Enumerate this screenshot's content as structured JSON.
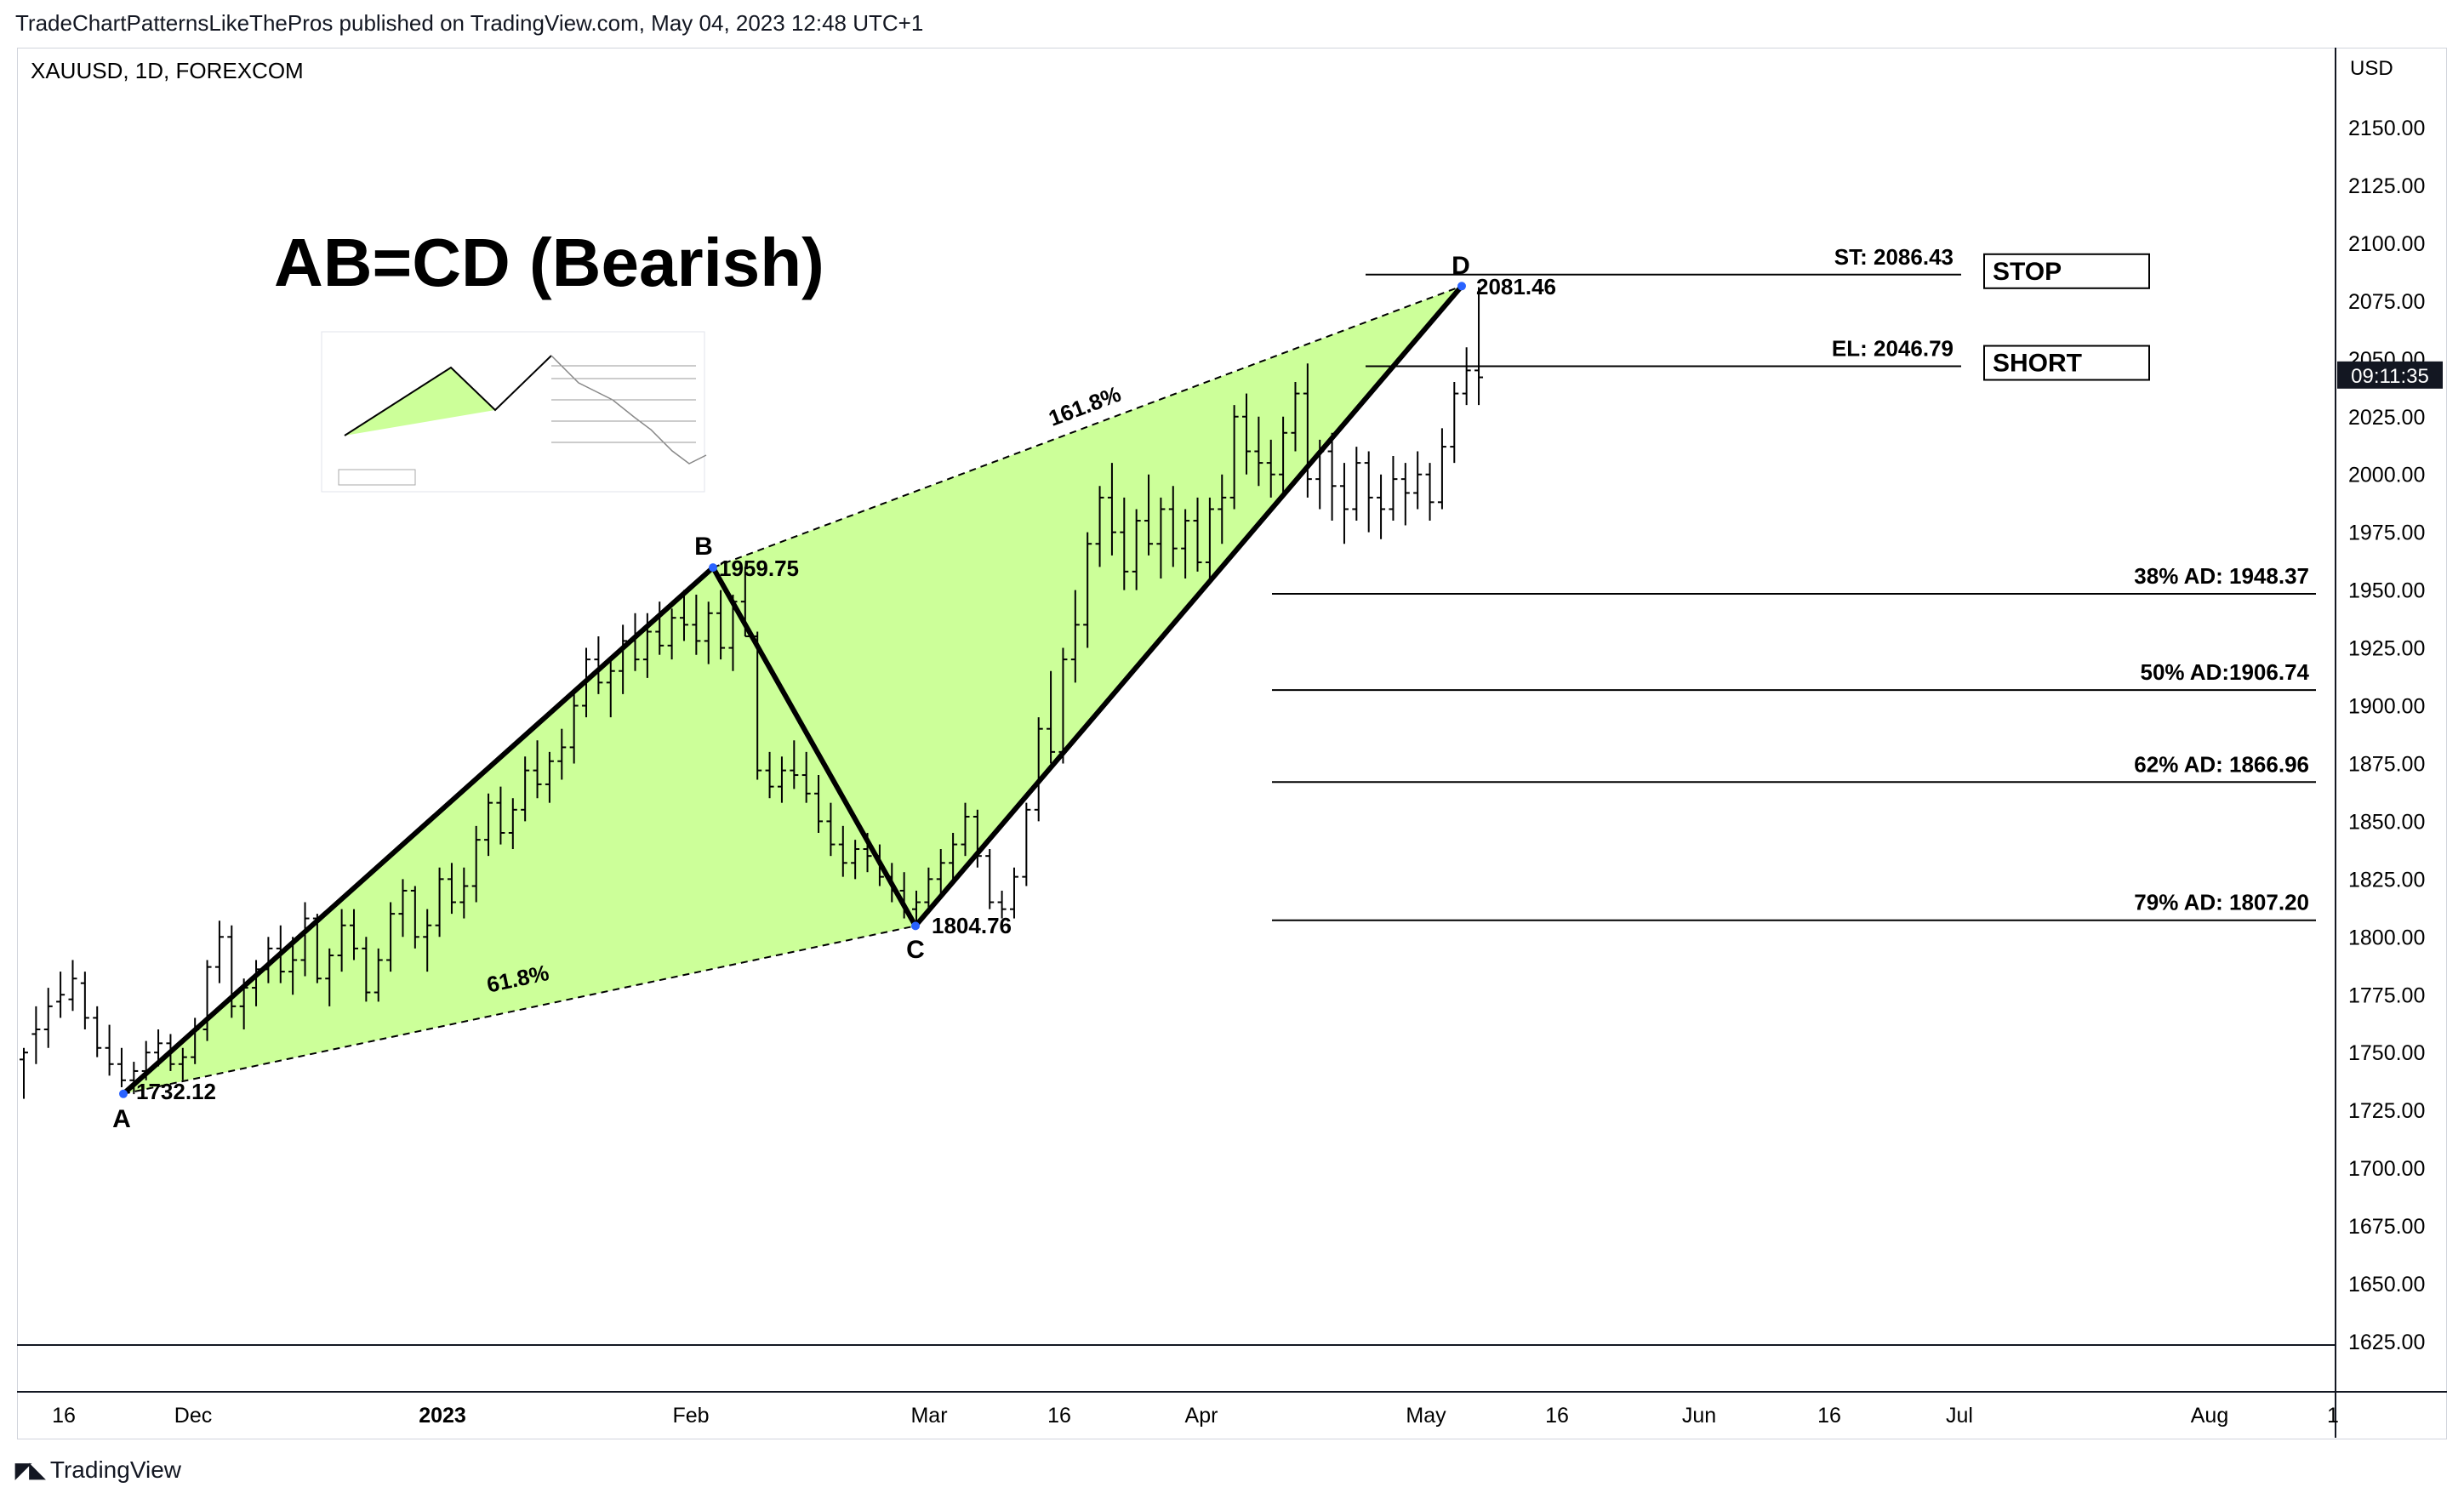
{
  "header": {
    "published": "TradeChartPatternsLikeThePros published on TradingView.com, May 04, 2023 12:48 UTC+1"
  },
  "brand": {
    "name": "TradingView",
    "icon": "tradingview-logo-icon"
  },
  "colors": {
    "fill": "#ccff99",
    "line": "#000000",
    "price_badge_bg": "#131722",
    "point": "#2962ff"
  },
  "chart_data": {
    "type": "bar",
    "symbol_label": "XAUUSD, 1D, FOREXCOM",
    "title": "AB=CD (Bearish)",
    "currency": "USD",
    "ylim": [
      1605,
      2170
    ],
    "y_ticks": [
      "2150.00",
      "2125.00",
      "2100.00",
      "2075.00",
      "2050.00",
      "2025.00",
      "2000.00",
      "1975.00",
      "1950.00",
      "1925.00",
      "1900.00",
      "1875.00",
      "1850.00",
      "1825.00",
      "1800.00",
      "1775.00",
      "1750.00",
      "1725.00",
      "1700.00",
      "1675.00",
      "1650.00",
      "1625.00"
    ],
    "x_ticks": [
      "16",
      "Dec",
      "2023",
      "Feb",
      "Mar",
      "16",
      "Apr",
      "May",
      "16",
      "Jun",
      "16",
      "Jul",
      "Aug",
      "1"
    ],
    "current_price_label": "09:11:35",
    "pattern_points": [
      {
        "name": "A",
        "price_label": "1732.12",
        "value": 1732.12
      },
      {
        "name": "B",
        "price_label": "1959.75",
        "value": 1959.75
      },
      {
        "name": "C",
        "price_label": "1804.76",
        "value": 1804.76
      },
      {
        "name": "D",
        "price_label": "2081.46",
        "value": 2081.46
      }
    ],
    "ratios": [
      {
        "label": "61.8%",
        "between": "A-C"
      },
      {
        "label": "161.8%",
        "between": "B-D"
      }
    ],
    "levels": [
      {
        "label": "ST: 2086.43",
        "value": 2086.43,
        "box": "STOP"
      },
      {
        "label": "EL: 2046.79",
        "value": 2046.79,
        "box": "SHORT"
      },
      {
        "label": "38% AD: 1948.37",
        "value": 1948.37
      },
      {
        "label": "50% AD:1906.74",
        "value": 1906.74
      },
      {
        "label": "62% AD: 1866.96",
        "value": 1866.96
      },
      {
        "label": "79% AD: 1807.20",
        "value": 1807.2
      }
    ],
    "ohlc": [
      [
        1747,
        1752,
        1730,
        1750
      ],
      [
        1758,
        1770,
        1745,
        1760
      ],
      [
        1760,
        1778,
        1752,
        1770
      ],
      [
        1772,
        1785,
        1765,
        1775
      ],
      [
        1773,
        1790,
        1768,
        1782
      ],
      [
        1780,
        1785,
        1760,
        1765
      ],
      [
        1765,
        1770,
        1748,
        1752
      ],
      [
        1752,
        1762,
        1740,
        1745
      ],
      [
        1745,
        1752,
        1735,
        1738
      ],
      [
        1738,
        1746,
        1732,
        1742
      ],
      [
        1742,
        1755,
        1738,
        1750
      ],
      [
        1750,
        1760,
        1744,
        1754
      ],
      [
        1754,
        1758,
        1742,
        1745
      ],
      [
        1745,
        1752,
        1738,
        1748
      ],
      [
        1748,
        1765,
        1745,
        1760
      ],
      [
        1760,
        1790,
        1755,
        1787
      ],
      [
        1787,
        1807,
        1780,
        1800
      ],
      [
        1800,
        1805,
        1765,
        1770
      ],
      [
        1770,
        1782,
        1760,
        1778
      ],
      [
        1778,
        1790,
        1770,
        1786
      ],
      [
        1786,
        1800,
        1780,
        1795
      ],
      [
        1795,
        1805,
        1780,
        1785
      ],
      [
        1785,
        1800,
        1775,
        1790
      ],
      [
        1790,
        1815,
        1783,
        1808
      ],
      [
        1808,
        1810,
        1780,
        1782
      ],
      [
        1782,
        1795,
        1770,
        1792
      ],
      [
        1792,
        1812,
        1785,
        1805
      ],
      [
        1805,
        1812,
        1790,
        1795
      ],
      [
        1795,
        1800,
        1772,
        1776
      ],
      [
        1776,
        1795,
        1772,
        1790
      ],
      [
        1790,
        1815,
        1785,
        1810
      ],
      [
        1810,
        1825,
        1800,
        1820
      ],
      [
        1820,
        1822,
        1795,
        1800
      ],
      [
        1800,
        1812,
        1785,
        1805
      ],
      [
        1805,
        1830,
        1800,
        1825
      ],
      [
        1825,
        1832,
        1810,
        1815
      ],
      [
        1815,
        1830,
        1808,
        1822
      ],
      [
        1822,
        1848,
        1815,
        1842
      ],
      [
        1842,
        1862,
        1835,
        1858
      ],
      [
        1858,
        1865,
        1840,
        1845
      ],
      [
        1845,
        1860,
        1838,
        1855
      ],
      [
        1855,
        1878,
        1850,
        1872
      ],
      [
        1872,
        1885,
        1860,
        1866
      ],
      [
        1866,
        1880,
        1858,
        1876
      ],
      [
        1876,
        1890,
        1868,
        1882
      ],
      [
        1882,
        1905,
        1875,
        1900
      ],
      [
        1900,
        1925,
        1895,
        1920
      ],
      [
        1920,
        1930,
        1905,
        1910
      ],
      [
        1910,
        1920,
        1895,
        1915
      ],
      [
        1915,
        1935,
        1905,
        1928
      ],
      [
        1928,
        1940,
        1915,
        1920
      ],
      [
        1920,
        1940,
        1912,
        1932
      ],
      [
        1932,
        1945,
        1922,
        1926
      ],
      [
        1926,
        1942,
        1920,
        1938
      ],
      [
        1938,
        1950,
        1928,
        1935
      ],
      [
        1935,
        1948,
        1922,
        1928
      ],
      [
        1928,
        1945,
        1918,
        1940
      ],
      [
        1940,
        1950,
        1920,
        1925
      ],
      [
        1925,
        1948,
        1915,
        1945
      ],
      [
        1945,
        1960,
        1930,
        1930
      ],
      [
        1930,
        1932,
        1868,
        1872
      ],
      [
        1872,
        1880,
        1860,
        1865
      ],
      [
        1865,
        1878,
        1858,
        1872
      ],
      [
        1872,
        1885,
        1864,
        1870
      ],
      [
        1870,
        1880,
        1858,
        1862
      ],
      [
        1862,
        1870,
        1845,
        1850
      ],
      [
        1850,
        1858,
        1835,
        1840
      ],
      [
        1840,
        1848,
        1826,
        1832
      ],
      [
        1832,
        1842,
        1825,
        1838
      ],
      [
        1838,
        1845,
        1828,
        1835
      ],
      [
        1835,
        1840,
        1822,
        1826
      ],
      [
        1826,
        1832,
        1815,
        1820
      ],
      [
        1820,
        1828,
        1808,
        1812
      ],
      [
        1812,
        1820,
        1805,
        1815
      ],
      [
        1815,
        1830,
        1810,
        1825
      ],
      [
        1825,
        1838,
        1818,
        1832
      ],
      [
        1832,
        1845,
        1825,
        1840
      ],
      [
        1840,
        1858,
        1835,
        1852
      ],
      [
        1852,
        1855,
        1830,
        1835
      ],
      [
        1835,
        1838,
        1812,
        1815
      ],
      [
        1815,
        1820,
        1808,
        1812
      ],
      [
        1812,
        1830,
        1808,
        1826
      ],
      [
        1826,
        1858,
        1822,
        1855
      ],
      [
        1855,
        1895,
        1850,
        1890
      ],
      [
        1890,
        1915,
        1875,
        1880
      ],
      [
        1880,
        1925,
        1875,
        1920
      ],
      [
        1920,
        1950,
        1910,
        1935
      ],
      [
        1935,
        1975,
        1925,
        1970
      ],
      [
        1970,
        1995,
        1960,
        1990
      ],
      [
        1990,
        2005,
        1965,
        1975
      ],
      [
        1975,
        1990,
        1950,
        1958
      ],
      [
        1958,
        1985,
        1950,
        1980
      ],
      [
        1980,
        2000,
        1965,
        1970
      ],
      [
        1970,
        1990,
        1955,
        1985
      ],
      [
        1985,
        1995,
        1960,
        1968
      ],
      [
        1968,
        1985,
        1955,
        1980
      ],
      [
        1980,
        1990,
        1958,
        1962
      ],
      [
        1962,
        1990,
        1955,
        1985
      ],
      [
        1985,
        2000,
        1970,
        1990
      ],
      [
        1990,
        2030,
        1985,
        2025
      ],
      [
        2025,
        2035,
        2000,
        2010
      ],
      [
        2010,
        2025,
        1995,
        2005
      ],
      [
        2005,
        2015,
        1990,
        2000
      ],
      [
        2000,
        2025,
        1992,
        2018
      ],
      [
        2018,
        2040,
        2010,
        2035
      ],
      [
        2035,
        2048,
        1990,
        1998
      ],
      [
        1998,
        2015,
        1985,
        2010
      ],
      [
        2010,
        2018,
        1980,
        1995
      ],
      [
        1995,
        2005,
        1970,
        1985
      ],
      [
        1985,
        2012,
        1980,
        2005
      ],
      [
        2005,
        2010,
        1975,
        1990
      ],
      [
        1990,
        2000,
        1972,
        1985
      ],
      [
        1985,
        2008,
        1980,
        1998
      ],
      [
        1998,
        2005,
        1978,
        1992
      ],
      [
        1992,
        2010,
        1985,
        2000
      ],
      [
        2000,
        2005,
        1980,
        1988
      ],
      [
        1988,
        2020,
        1985,
        2012
      ],
      [
        2012,
        2040,
        2005,
        2035
      ],
      [
        2035,
        2055,
        2030,
        2045
      ],
      [
        2045,
        2081,
        2030,
        2042
      ]
    ]
  }
}
